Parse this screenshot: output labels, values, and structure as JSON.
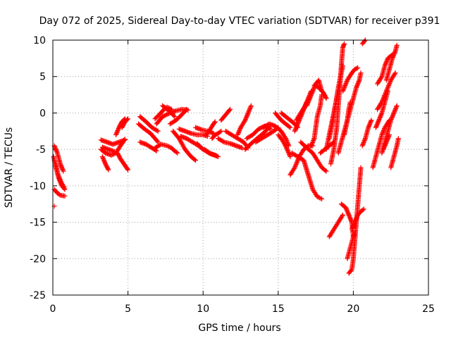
{
  "chart_data": {
    "type": "scatter",
    "title": "Day 072 of 2025, Sidereal Day-to-day VTEC variation (SDTVAR) for receiver p391",
    "xlabel": "GPS time / hours",
    "ylabel": "SDTVAR / TECUs",
    "xlim": [
      0,
      25
    ],
    "ylim": [
      -25,
      10
    ],
    "xticks": [
      0,
      5,
      10,
      15,
      20,
      25
    ],
    "yticks": [
      -25,
      -20,
      -15,
      -10,
      -5,
      0,
      5,
      10
    ],
    "grid": true,
    "marker": "+",
    "color": "#ff0000",
    "tracks": [
      [
        [
          0.1,
          -4.5
        ],
        [
          0.3,
          -5.5
        ],
        [
          0.5,
          -7.0
        ],
        [
          0.7,
          -8.0
        ]
      ],
      [
        [
          0.05,
          -6.0
        ],
        [
          0.2,
          -7.5
        ],
        [
          0.4,
          -9.0
        ],
        [
          0.6,
          -10.0
        ],
        [
          0.8,
          -10.5
        ]
      ],
      [
        [
          0.1,
          -10.5
        ],
        [
          0.3,
          -11.0
        ],
        [
          0.5,
          -11.3
        ],
        [
          0.8,
          -11.4
        ]
      ],
      [
        [
          0.2,
          -7.0
        ],
        [
          0.35,
          -8.5
        ],
        [
          0.55,
          -9.5
        ],
        [
          0.75,
          -10.2
        ]
      ],
      [
        [
          0.1,
          -12.8
        ]
      ],
      [
        [
          3.2,
          -3.7
        ],
        [
          3.6,
          -4.0
        ],
        [
          4.0,
          -4.3
        ],
        [
          4.4,
          -4.0
        ],
        [
          4.8,
          -3.7
        ]
      ],
      [
        [
          3.3,
          -4.7
        ],
        [
          3.7,
          -5.0
        ],
        [
          4.1,
          -5.3
        ]
      ],
      [
        [
          3.2,
          -5.0
        ],
        [
          3.5,
          -5.5
        ],
        [
          3.9,
          -5.8
        ],
        [
          4.2,
          -5.5
        ],
        [
          4.5,
          -4.5
        ],
        [
          4.8,
          -3.6
        ]
      ],
      [
        [
          3.3,
          -6.0
        ],
        [
          3.5,
          -7.0
        ],
        [
          3.7,
          -7.8
        ]
      ],
      [
        [
          4.3,
          -5.5
        ],
        [
          4.5,
          -6.3
        ],
        [
          4.8,
          -7.2
        ],
        [
          5.0,
          -7.8
        ]
      ],
      [
        [
          4.2,
          -3.0
        ],
        [
          4.4,
          -2.0
        ],
        [
          4.6,
          -1.2
        ],
        [
          4.8,
          -0.8
        ]
      ],
      [
        [
          4.6,
          -2.0
        ],
        [
          4.8,
          -1.2
        ],
        [
          5.0,
          -0.8
        ]
      ],
      [
        [
          5.8,
          -0.5
        ],
        [
          6.2,
          -1.2
        ],
        [
          6.6,
          -2.0
        ],
        [
          7.0,
          -2.5
        ]
      ],
      [
        [
          5.7,
          -1.5
        ],
        [
          6.1,
          -2.2
        ],
        [
          6.5,
          -2.8
        ],
        [
          6.8,
          -3.5
        ],
        [
          7.0,
          -4.0
        ]
      ],
      [
        [
          5.8,
          -4.0
        ],
        [
          6.2,
          -4.3
        ],
        [
          6.6,
          -4.8
        ],
        [
          6.9,
          -5.2
        ]
      ],
      [
        [
          6.8,
          -4.8
        ],
        [
          7.2,
          -4.3
        ],
        [
          7.6,
          -4.5
        ],
        [
          7.9,
          -4.8
        ],
        [
          8.1,
          -5.2
        ],
        [
          8.3,
          -5.5
        ]
      ],
      [
        [
          6.8,
          -0.8
        ],
        [
          7.1,
          -0.2
        ],
        [
          7.4,
          0.5
        ],
        [
          7.6,
          0.8
        ],
        [
          7.9,
          0.5
        ]
      ],
      [
        [
          6.9,
          -1.5
        ],
        [
          7.3,
          -0.5
        ],
        [
          7.8,
          0.0
        ],
        [
          8.2,
          0.3
        ],
        [
          8.6,
          0.5
        ],
        [
          9.0,
          0.4
        ]
      ],
      [
        [
          7.3,
          1.0
        ],
        [
          7.6,
          0.5
        ],
        [
          7.9,
          0.0
        ],
        [
          8.1,
          -0.5
        ]
      ],
      [
        [
          7.8,
          -1.5
        ],
        [
          8.2,
          -1.0
        ],
        [
          8.6,
          -0.2
        ],
        [
          8.9,
          0.5
        ]
      ],
      [
        [
          8.0,
          -2.5
        ],
        [
          8.4,
          -3.5
        ],
        [
          8.8,
          -5.0
        ],
        [
          9.2,
          -6.0
        ],
        [
          9.5,
          -6.5
        ]
      ],
      [
        [
          8.4,
          -2.2
        ],
        [
          8.8,
          -2.5
        ],
        [
          9.2,
          -2.8
        ],
        [
          9.6,
          -3.0
        ],
        [
          10.0,
          -3.0
        ],
        [
          10.3,
          -3.2
        ]
      ],
      [
        [
          8.5,
          -3.2
        ],
        [
          8.9,
          -3.5
        ],
        [
          9.3,
          -4.0
        ],
        [
          9.7,
          -4.5
        ],
        [
          10.0,
          -5.0
        ]
      ],
      [
        [
          9.5,
          -2.0
        ],
        [
          9.9,
          -2.3
        ],
        [
          10.3,
          -2.5
        ],
        [
          10.7,
          -2.8
        ]
      ],
      [
        [
          9.6,
          -4.2
        ],
        [
          10.0,
          -5.0
        ],
        [
          10.4,
          -5.5
        ],
        [
          10.8,
          -5.8
        ],
        [
          11.0,
          -6.0
        ]
      ],
      [
        [
          10.2,
          -3.0
        ],
        [
          10.4,
          -2.5
        ],
        [
          10.6,
          -1.8
        ],
        [
          10.8,
          -1.2
        ]
      ],
      [
        [
          10.1,
          -5.0
        ],
        [
          10.5,
          -5.6
        ],
        [
          10.9,
          -5.9
        ]
      ],
      [
        [
          10.6,
          -3.5
        ],
        [
          10.8,
          -3.0
        ],
        [
          11.0,
          -2.8
        ],
        [
          11.2,
          -2.5
        ]
      ],
      [
        [
          11.2,
          -1.0
        ],
        [
          11.4,
          -0.5
        ],
        [
          11.6,
          0.0
        ],
        [
          11.8,
          0.5
        ]
      ],
      [
        [
          11.0,
          -3.5
        ],
        [
          11.4,
          -4.0
        ],
        [
          11.8,
          -4.2
        ],
        [
          12.2,
          -4.5
        ],
        [
          12.6,
          -4.8
        ]
      ],
      [
        [
          11.5,
          -2.5
        ],
        [
          11.9,
          -3.0
        ],
        [
          12.3,
          -3.5
        ],
        [
          12.7,
          -4.0
        ],
        [
          13.0,
          -4.8
        ]
      ],
      [
        [
          12.3,
          -3.0
        ],
        [
          12.5,
          -2.0
        ],
        [
          12.8,
          -1.0
        ],
        [
          13.0,
          0.0
        ],
        [
          13.2,
          1.0
        ]
      ],
      [
        [
          12.8,
          -5.0
        ],
        [
          13.2,
          -4.2
        ],
        [
          13.6,
          -3.5
        ],
        [
          14.0,
          -2.8
        ],
        [
          14.4,
          -2.0
        ]
      ],
      [
        [
          12.9,
          -3.5
        ],
        [
          13.3,
          -3.0
        ],
        [
          13.7,
          -2.2
        ],
        [
          14.1,
          -1.8
        ],
        [
          14.5,
          -2.2
        ]
      ],
      [
        [
          13.5,
          -4.0
        ],
        [
          13.9,
          -3.5
        ],
        [
          14.3,
          -3.0
        ],
        [
          14.7,
          -2.5
        ],
        [
          15.0,
          -2.0
        ]
      ],
      [
        [
          14.0,
          -2.0
        ],
        [
          14.4,
          -1.5
        ],
        [
          14.8,
          -1.8
        ],
        [
          15.2,
          -2.5
        ],
        [
          15.5,
          -3.5
        ],
        [
          15.7,
          -4.5
        ]
      ],
      [
        [
          14.8,
          0.0
        ],
        [
          15.0,
          -0.5
        ],
        [
          15.2,
          -1.0
        ],
        [
          15.5,
          -1.5
        ],
        [
          15.8,
          -2.0
        ]
      ],
      [
        [
          15.0,
          -3.0
        ],
        [
          15.3,
          -3.8
        ],
        [
          15.6,
          -5.0
        ],
        [
          15.8,
          -6.0
        ]
      ],
      [
        [
          15.2,
          0.0
        ],
        [
          15.5,
          -0.5
        ],
        [
          15.8,
          -1.0
        ],
        [
          16.1,
          -1.5
        ],
        [
          16.3,
          -2.0
        ]
      ],
      [
        [
          15.8,
          -8.5
        ],
        [
          16.1,
          -7.5
        ],
        [
          16.4,
          -6.0
        ],
        [
          16.7,
          -5.0
        ],
        [
          17.0,
          -4.5
        ],
        [
          17.3,
          -4.5
        ]
      ],
      [
        [
          15.9,
          -5.5
        ],
        [
          16.3,
          -6.0
        ],
        [
          16.7,
          -6.5
        ],
        [
          17.0,
          -8.5
        ],
        [
          17.3,
          -10.5
        ],
        [
          17.6,
          -11.5
        ],
        [
          17.9,
          -11.8
        ]
      ],
      [
        [
          16.1,
          -2.5
        ],
        [
          16.3,
          -1.5
        ],
        [
          16.5,
          -0.5
        ],
        [
          16.7,
          0.5
        ],
        [
          16.9,
          1.5
        ]
      ],
      [
        [
          16.2,
          -1.0
        ],
        [
          16.5,
          0.0
        ],
        [
          16.8,
          1.0
        ],
        [
          17.0,
          2.0
        ],
        [
          17.2,
          3.0
        ]
      ],
      [
        [
          16.5,
          -4.0
        ],
        [
          16.9,
          -4.8
        ],
        [
          17.3,
          -5.5
        ],
        [
          17.6,
          -6.5
        ],
        [
          17.9,
          -7.5
        ],
        [
          18.2,
          -8.0
        ]
      ],
      [
        [
          16.9,
          1.0
        ],
        [
          17.1,
          2.0
        ],
        [
          17.3,
          3.0
        ],
        [
          17.5,
          4.0
        ],
        [
          17.7,
          4.5
        ],
        [
          17.9,
          3.0
        ]
      ],
      [
        [
          17.2,
          -4.5
        ],
        [
          17.4,
          -3.5
        ],
        [
          17.5,
          -2.0
        ],
        [
          17.6,
          -0.5
        ],
        [
          17.8,
          1.0
        ],
        [
          17.9,
          2.5
        ]
      ],
      [
        [
          17.4,
          3.8
        ],
        [
          17.7,
          3.5
        ],
        [
          18.0,
          2.8
        ],
        [
          18.2,
          2.0
        ]
      ],
      [
        [
          17.8,
          -5.5
        ],
        [
          18.1,
          -5.0
        ],
        [
          18.4,
          -4.5
        ],
        [
          18.7,
          -4.0
        ]
      ],
      [
        [
          18.2,
          -5.0
        ],
        [
          18.4,
          -3.0
        ],
        [
          18.6,
          -1.0
        ],
        [
          18.8,
          1.0
        ],
        [
          19.0,
          3.0
        ]
      ],
      [
        [
          18.4,
          -17.0
        ],
        [
          18.7,
          -16.0
        ],
        [
          19.0,
          -15.0
        ],
        [
          19.3,
          -14.0
        ]
      ],
      [
        [
          18.5,
          -7.0
        ],
        [
          18.7,
          -5.0
        ],
        [
          18.9,
          -2.0
        ],
        [
          19.0,
          1.0
        ],
        [
          19.1,
          3.5
        ],
        [
          19.2,
          6.5
        ],
        [
          19.3,
          9.0
        ],
        [
          19.4,
          9.5
        ]
      ],
      [
        [
          18.4,
          -3.5
        ],
        [
          18.6,
          -1.5
        ],
        [
          18.8,
          1.0
        ],
        [
          19.0,
          3.5
        ],
        [
          19.2,
          5.5
        ],
        [
          19.3,
          6.5
        ]
      ],
      [
        [
          19.3,
          3.0
        ],
        [
          19.6,
          4.5
        ],
        [
          19.9,
          5.5
        ],
        [
          20.1,
          6.0
        ],
        [
          20.3,
          6.2
        ]
      ],
      [
        [
          19.2,
          -12.5
        ],
        [
          19.5,
          -13.0
        ],
        [
          19.7,
          -14.0
        ],
        [
          19.9,
          -15.0
        ],
        [
          20.0,
          -17.0
        ]
      ],
      [
        [
          19.7,
          -22.0
        ],
        [
          19.9,
          -21.5
        ],
        [
          20.0,
          -20.0
        ],
        [
          20.1,
          -17.5
        ],
        [
          20.2,
          -15.0
        ],
        [
          20.3,
          -12.5
        ],
        [
          20.4,
          -10.0
        ],
        [
          20.5,
          -7.5
        ]
      ],
      [
        [
          19.6,
          -20.0
        ],
        [
          19.8,
          -18.5
        ],
        [
          20.0,
          -17.0
        ],
        [
          20.1,
          -16.5
        ]
      ],
      [
        [
          19.9,
          -16.0
        ],
        [
          20.1,
          -15.0
        ],
        [
          20.3,
          -14.0
        ],
        [
          20.5,
          -13.5
        ],
        [
          20.7,
          -13.2
        ]
      ],
      [
        [
          19.4,
          -3.0
        ],
        [
          19.6,
          -1.0
        ],
        [
          19.8,
          0.5
        ],
        [
          20.0,
          2.0
        ],
        [
          20.2,
          3.5
        ],
        [
          20.4,
          4.5
        ],
        [
          20.5,
          5.5
        ]
      ],
      [
        [
          19.0,
          -5.5
        ],
        [
          19.2,
          -4.0
        ],
        [
          19.4,
          -2.5
        ],
        [
          19.6,
          -1.0
        ],
        [
          19.7,
          0.5
        ],
        [
          19.8,
          1.5
        ]
      ],
      [
        [
          20.6,
          -4.5
        ],
        [
          20.8,
          -3.5
        ],
        [
          21.0,
          -2.0
        ],
        [
          21.2,
          -1.0
        ]
      ],
      [
        [
          20.6,
          9.5
        ],
        [
          20.8,
          10.0
        ]
      ],
      [
        [
          21.3,
          -7.5
        ],
        [
          21.5,
          -6.0
        ],
        [
          21.7,
          -4.5
        ],
        [
          21.9,
          -3.0
        ],
        [
          22.1,
          -2.0
        ],
        [
          22.4,
          -1.0
        ]
      ],
      [
        [
          21.5,
          -2.0
        ],
        [
          21.7,
          -1.0
        ],
        [
          21.9,
          0.0
        ],
        [
          22.1,
          1.5
        ],
        [
          22.3,
          3.0
        ]
      ],
      [
        [
          21.6,
          4.0
        ],
        [
          21.9,
          5.0
        ],
        [
          22.1,
          6.5
        ],
        [
          22.3,
          7.5
        ],
        [
          22.6,
          8.0
        ]
      ],
      [
        [
          21.6,
          0.5
        ],
        [
          21.9,
          1.5
        ],
        [
          22.2,
          3.0
        ],
        [
          22.5,
          4.5
        ],
        [
          22.8,
          5.5
        ]
      ],
      [
        [
          21.9,
          -5.5
        ],
        [
          22.1,
          -4.0
        ],
        [
          22.3,
          -2.5
        ],
        [
          22.5,
          -1.0
        ],
        [
          22.7,
          0.0
        ],
        [
          22.9,
          1.0
        ]
      ],
      [
        [
          22.2,
          4.5
        ],
        [
          22.4,
          6.0
        ],
        [
          22.6,
          7.5
        ],
        [
          22.8,
          8.5
        ],
        [
          22.9,
          9.3
        ]
      ],
      [
        [
          22.5,
          -7.5
        ],
        [
          22.7,
          -6.0
        ],
        [
          22.9,
          -4.5
        ],
        [
          23.0,
          -3.5
        ]
      ],
      [
        [
          22.0,
          -5.0
        ],
        [
          22.2,
          -4.0
        ],
        [
          22.4,
          -3.0
        ]
      ]
    ]
  }
}
